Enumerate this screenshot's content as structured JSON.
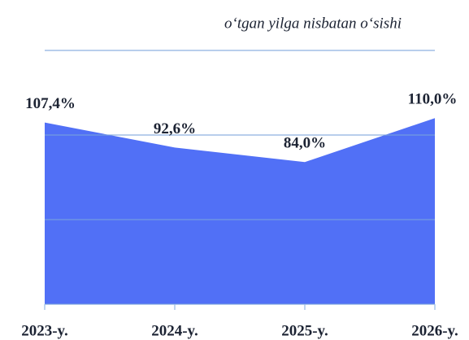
{
  "chart_data": {
    "type": "area",
    "title": "o‘tgan yilga nisbatan o‘sishi",
    "categories": [
      "2023-y.",
      "2024-y.",
      "2025-y.",
      "2026-y."
    ],
    "values": [
      107.4,
      92.6,
      84.0,
      110.0
    ],
    "value_labels": [
      "107,4%",
      "92,6%",
      "84,0%",
      "110,0%"
    ],
    "color": "#5170f6",
    "ylim": [
      0,
      150
    ],
    "yticks": [
      0,
      50,
      100,
      150
    ],
    "grid": true
  }
}
